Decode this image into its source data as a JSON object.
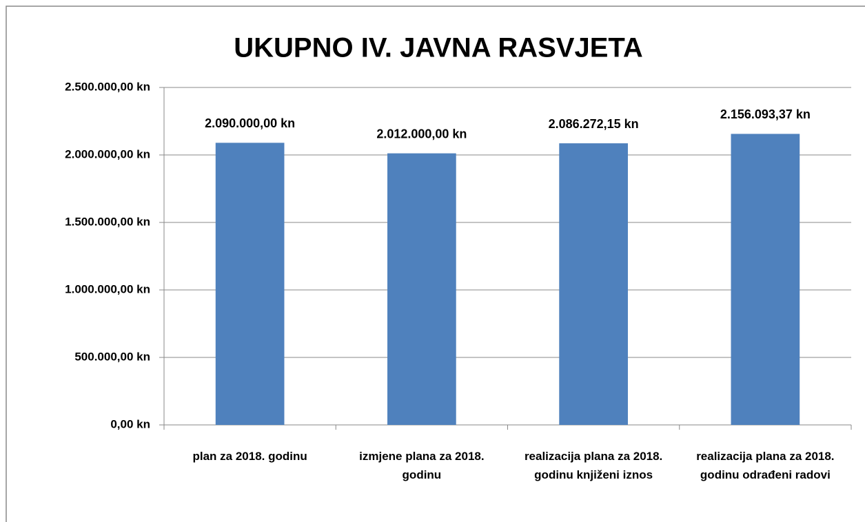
{
  "chart_data": {
    "type": "bar",
    "title": "UKUPNO IV. JAVNA RASVJETA",
    "categories": [
      "plan za 2018. godinu",
      "izmjene plana za 2018. godinu",
      "realizacija plana za 2018. godinu knjiženi iznos",
      "realizacija plana za 2018. godinu odrađeni radovi"
    ],
    "values": [
      2090000,
      2012000,
      2086272.15,
      2156093.37
    ],
    "value_labels": [
      "2.090.000,00 kn",
      "2.012.000,00 kn",
      "2.086.272,15 kn",
      "2.156.093,37 kn"
    ],
    "color": "#4f81bd",
    "ylim": [
      0,
      2500000
    ],
    "yticks": [
      {
        "value": 0,
        "label": "0,00 kn"
      },
      {
        "value": 500000,
        "label": "500.000,00 kn"
      },
      {
        "value": 1000000,
        "label": "1.000.000,00 kn"
      },
      {
        "value": 1500000,
        "label": "1.500.000,00 kn"
      },
      {
        "value": 2000000,
        "label": "2.000.000,00 kn"
      },
      {
        "value": 2500000,
        "label": "2.500.000,00 kn"
      }
    ],
    "grid": true
  }
}
